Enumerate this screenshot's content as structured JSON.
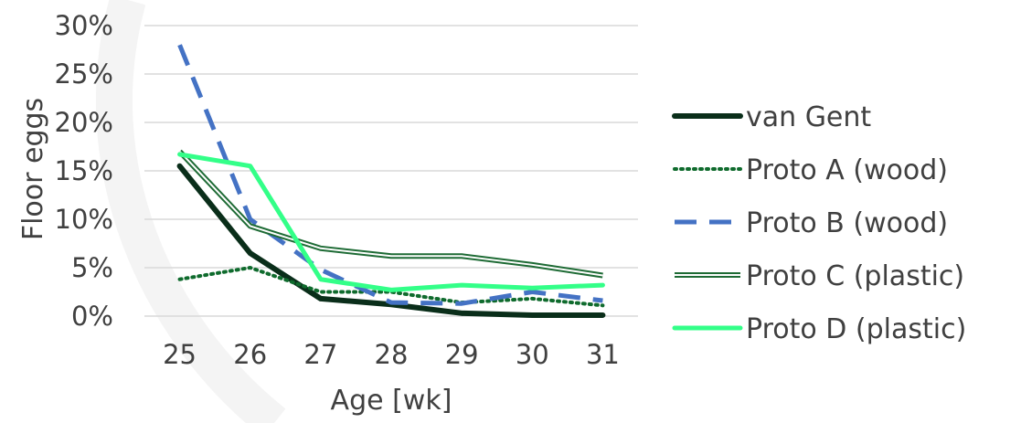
{
  "chart_data": {
    "type": "line",
    "xlabel": "Age [wk]",
    "ylabel": "Floor eggs",
    "categories": [
      25,
      26,
      27,
      28,
      29,
      30,
      31
    ],
    "ylim": [
      0,
      0.3
    ],
    "yticks": [
      "0%",
      "5%",
      "10%",
      "15%",
      "20%",
      "25%",
      "30%"
    ],
    "grid": "horizontal",
    "legend_position": "right",
    "series": [
      {
        "name": "van Gent",
        "color": "#0a2e1a",
        "style": "solid",
        "values": [
          0.155,
          0.065,
          0.018,
          0.012,
          0.003,
          0.001,
          0.001
        ]
      },
      {
        "name": "Proto A (wood)",
        "color": "#0f6b2d",
        "style": "dotted",
        "values": [
          0.038,
          0.05,
          0.025,
          0.025,
          0.014,
          0.018,
          0.011
        ]
      },
      {
        "name": "Proto B (wood)",
        "color": "#4472c4",
        "style": "dashed",
        "values": [
          0.28,
          0.1,
          0.048,
          0.014,
          0.013,
          0.025,
          0.016
        ]
      },
      {
        "name": "Proto C (plastic)",
        "color": "#1e6b35",
        "style": "double",
        "values": [
          0.17,
          0.093,
          0.07,
          0.062,
          0.062,
          0.053,
          0.042
        ]
      },
      {
        "name": "Proto D (plastic)",
        "color": "#33ff88",
        "style": "solid",
        "values": [
          0.167,
          0.155,
          0.038,
          0.027,
          0.032,
          0.029,
          0.032
        ]
      }
    ]
  }
}
